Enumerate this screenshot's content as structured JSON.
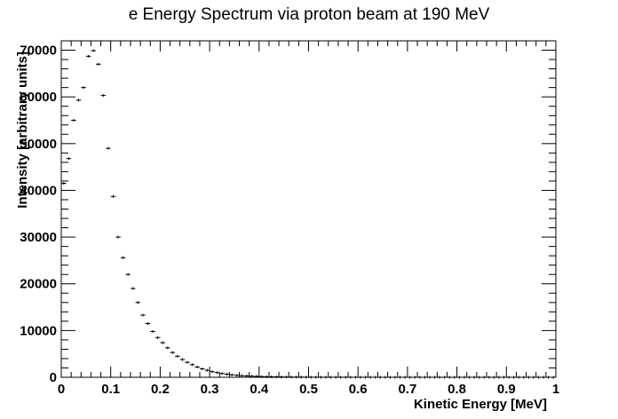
{
  "chart_data": {
    "type": "scatter",
    "title": "e Energy Spectrum via proton beam at 190 MeV",
    "xlabel": "Kinetic Energy [MeV]",
    "ylabel": "Intensity [arbitrary units]",
    "xlim": [
      0,
      1
    ],
    "ylim": [
      0,
      72000
    ],
    "xticks": [
      "0",
      "0.1",
      "0.2",
      "0.3",
      "0.4",
      "0.5",
      "0.6",
      "0.7",
      "0.8",
      "0.9",
      "1"
    ],
    "yticks": [
      "0",
      "10000",
      "20000",
      "30000",
      "40000",
      "50000",
      "60000",
      "70000"
    ],
    "grid": false,
    "bin_width": 0.01,
    "series": [
      {
        "x": [
          0.005,
          0.015,
          0.025,
          0.035,
          0.045,
          0.055,
          0.065,
          0.075,
          0.085,
          0.095,
          0.105,
          0.115,
          0.125,
          0.135,
          0.145,
          0.155,
          0.165,
          0.175,
          0.185,
          0.195,
          0.205,
          0.215,
          0.225,
          0.235,
          0.245,
          0.255,
          0.265,
          0.275,
          0.285,
          0.295,
          0.305,
          0.315,
          0.325,
          0.335,
          0.345,
          0.355,
          0.365,
          0.375,
          0.385,
          0.395,
          0.405,
          0.415,
          0.425,
          0.435,
          0.445,
          0.455,
          0.465,
          0.475,
          0.485,
          0.495,
          0.505,
          0.515,
          0.525,
          0.535,
          0.545,
          0.555,
          0.565,
          0.575,
          0.585,
          0.595,
          0.605,
          0.615,
          0.625,
          0.635,
          0.645,
          0.655,
          0.665,
          0.675,
          0.685,
          0.695,
          0.705,
          0.715,
          0.725,
          0.735,
          0.745,
          0.755,
          0.765,
          0.775,
          0.785,
          0.795,
          0.805,
          0.815,
          0.825,
          0.835,
          0.845,
          0.855,
          0.865,
          0.875,
          0.885,
          0.895,
          0.905,
          0.915,
          0.925,
          0.935,
          0.945,
          0.955,
          0.965,
          0.975,
          0.985,
          0.995
        ],
        "y": [
          41500,
          46800,
          55000,
          59300,
          62000,
          68700,
          69900,
          67000,
          60300,
          49000,
          38700,
          30000,
          25600,
          22000,
          19000,
          16000,
          13300,
          11500,
          9800,
          8500,
          7400,
          6300,
          5300,
          4500,
          3800,
          3200,
          2700,
          2200,
          1800,
          1500,
          1200,
          1000,
          800,
          650,
          520,
          420,
          340,
          280,
          230,
          190,
          150,
          120,
          100,
          80,
          70,
          60,
          50,
          40,
          35,
          30,
          25,
          20,
          18,
          15,
          12,
          10,
          9,
          8,
          7,
          6,
          5,
          4,
          4,
          3,
          3,
          2,
          2,
          2,
          2,
          1,
          1,
          1,
          1,
          1,
          1,
          1,
          1,
          1,
          1,
          1,
          1,
          1,
          1,
          1,
          1,
          1,
          1,
          1,
          1,
          1,
          1,
          1,
          1,
          1,
          1,
          1,
          1,
          1,
          1,
          1
        ]
      }
    ]
  }
}
